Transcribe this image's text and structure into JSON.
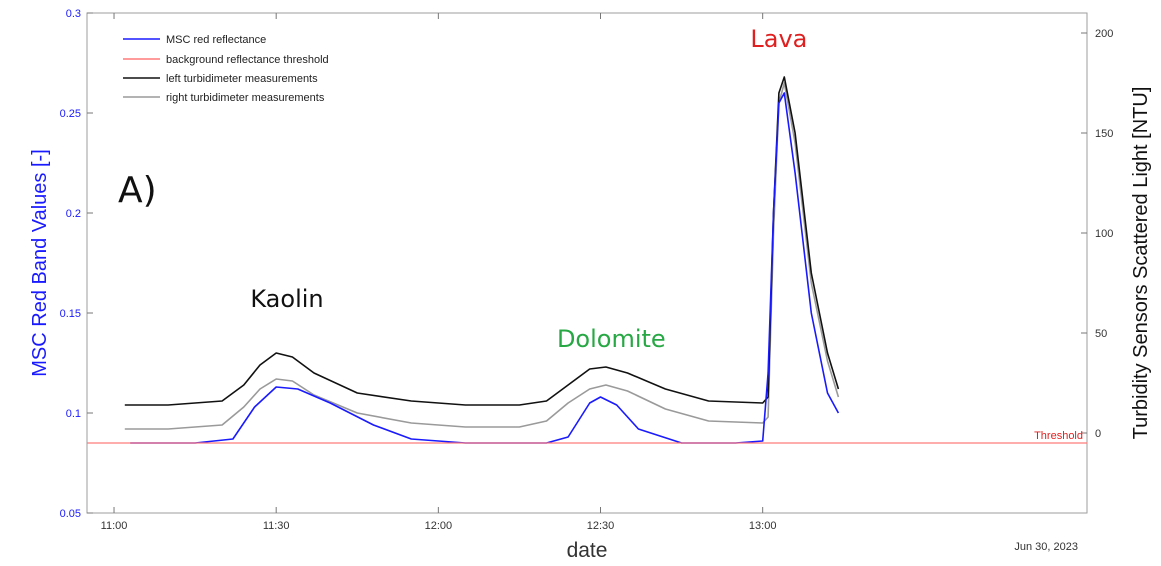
{
  "chart_data": {
    "type": "line",
    "panel_label": "A)",
    "xlabel": "date",
    "date_note": "Jun 30, 2023",
    "x_ticks": [
      "11:00",
      "11:30",
      "12:00",
      "12:30",
      "13:00"
    ],
    "xlim": [
      "10:55",
      "14:00"
    ],
    "ylabel_left": "MSC Red Band Values [-]",
    "ylim_left": [
      0.05,
      0.3
    ],
    "y_ticks_left": [
      "0.05",
      "0.1",
      "0.15",
      "0.2",
      "0.25",
      "0.3"
    ],
    "ylabel_right": "Turbidity Sensors Scattered Light [NTU]",
    "ylim_right": [
      -40,
      210
    ],
    "y_ticks_right": [
      "0",
      "50",
      "100",
      "150",
      "200"
    ],
    "grid": false,
    "legend_position": "top-left",
    "threshold_label": "Threshold",
    "threshold_value_ntu": 0,
    "annotations": [
      {
        "text": "Kaolin",
        "time": "11:32",
        "ntu": 63,
        "color": "#111111"
      },
      {
        "text": "Dolomite",
        "time": "12:32",
        "ntu": 43,
        "color": "#27a844"
      },
      {
        "text": "Lava",
        "time": "13:03",
        "ntu": 193,
        "color": "#e02020"
      }
    ],
    "series": [
      {
        "name": "MSC red reflectance",
        "color": "#1a1aff",
        "axis": "left",
        "x": [
          "11:03",
          "11:15",
          "11:22",
          "11:26",
          "11:30",
          "11:34",
          "11:40",
          "11:48",
          "11:55",
          "12:05",
          "12:20",
          "12:24",
          "12:28",
          "12:30",
          "12:33",
          "12:37",
          "12:45",
          "12:55",
          "13:00",
          "13:01",
          "13:02",
          "13:03",
          "13:04",
          "13:06",
          "13:09",
          "13:12",
          "13:14"
        ],
        "y": [
          0.085,
          0.085,
          0.087,
          0.103,
          0.113,
          0.112,
          0.105,
          0.094,
          0.087,
          0.085,
          0.085,
          0.088,
          0.105,
          0.108,
          0.104,
          0.092,
          0.085,
          0.085,
          0.086,
          0.12,
          0.2,
          0.255,
          0.26,
          0.22,
          0.15,
          0.11,
          0.1
        ]
      },
      {
        "name": "background reflectance threshold",
        "color": "#ff7a7a",
        "axis": "left",
        "x": [
          "10:55",
          "14:00"
        ],
        "y": [
          0.085,
          0.085
        ]
      },
      {
        "name": "left turbidimeter measurements",
        "color": "#111111",
        "axis": "right",
        "x": [
          "11:02",
          "11:10",
          "11:20",
          "11:24",
          "11:27",
          "11:30",
          "11:33",
          "11:37",
          "11:45",
          "11:55",
          "12:05",
          "12:15",
          "12:20",
          "12:24",
          "12:28",
          "12:31",
          "12:35",
          "12:42",
          "12:50",
          "13:00",
          "13:01",
          "13:02",
          "13:03",
          "13:04",
          "13:06",
          "13:09",
          "13:12",
          "13:14"
        ],
        "y": [
          14,
          14,
          16,
          24,
          34,
          40,
          38,
          30,
          20,
          16,
          14,
          14,
          16,
          24,
          32,
          33,
          30,
          22,
          16,
          15,
          18,
          110,
          170,
          178,
          150,
          80,
          40,
          22
        ]
      },
      {
        "name": "right turbidimeter measurements",
        "color": "#9a9a9a",
        "axis": "right",
        "x": [
          "11:02",
          "11:10",
          "11:20",
          "11:24",
          "11:27",
          "11:30",
          "11:33",
          "11:37",
          "11:45",
          "11:55",
          "12:05",
          "12:15",
          "12:20",
          "12:24",
          "12:28",
          "12:31",
          "12:35",
          "12:42",
          "12:50",
          "13:00",
          "13:01",
          "13:02",
          "13:03",
          "13:04",
          "13:06",
          "13:09",
          "13:12",
          "13:14"
        ],
        "y": [
          2,
          2,
          4,
          13,
          22,
          27,
          26,
          19,
          10,
          5,
          3,
          3,
          6,
          15,
          22,
          24,
          21,
          12,
          6,
          5,
          8,
          100,
          165,
          175,
          145,
          75,
          36,
          18
        ]
      }
    ]
  }
}
